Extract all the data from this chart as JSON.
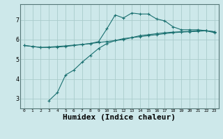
{
  "bg_color": "#cde8ea",
  "grid_color": "#aacccc",
  "line_color": "#1a7070",
  "xlabel": "Humidex (Indice chaleur)",
  "xlabel_fontsize": 8,
  "yticks": [
    3,
    4,
    5,
    6,
    7
  ],
  "xticks": [
    0,
    1,
    2,
    3,
    4,
    5,
    6,
    7,
    8,
    9,
    10,
    11,
    12,
    13,
    14,
    15,
    16,
    17,
    18,
    19,
    20,
    21,
    22,
    23
  ],
  "xlim": [
    -0.5,
    23.5
  ],
  "ylim": [
    2.5,
    7.8
  ],
  "curve1_x": [
    0,
    1,
    2,
    3,
    4,
    5,
    6,
    7,
    8,
    9,
    10,
    11,
    12,
    13,
    14,
    15,
    16,
    17,
    18,
    19,
    20,
    21,
    22,
    23
  ],
  "curve1_y": [
    5.7,
    5.65,
    5.6,
    5.6,
    5.62,
    5.65,
    5.7,
    5.75,
    5.8,
    5.9,
    6.55,
    7.25,
    7.1,
    7.35,
    7.3,
    7.3,
    7.05,
    6.95,
    6.65,
    6.5,
    6.5,
    6.5,
    6.45,
    6.35
  ],
  "curve2_x": [
    0,
    1,
    2,
    3,
    4,
    5,
    6,
    7,
    8,
    9,
    10,
    11,
    12,
    13,
    14,
    15,
    16,
    17,
    18,
    19,
    20,
    21,
    22,
    23
  ],
  "curve2_y": [
    5.7,
    5.65,
    5.6,
    5.62,
    5.65,
    5.68,
    5.72,
    5.75,
    5.8,
    5.85,
    5.9,
    5.95,
    6.0,
    6.1,
    6.2,
    6.25,
    6.3,
    6.35,
    6.38,
    6.4,
    6.42,
    6.45,
    6.45,
    6.4
  ],
  "curve3_x": [
    3,
    4,
    5,
    6,
    7,
    8,
    9,
    10,
    11,
    12,
    13,
    14,
    15,
    16,
    17,
    18,
    19,
    20,
    21,
    22,
    23
  ],
  "curve3_y": [
    2.9,
    3.3,
    4.2,
    4.45,
    4.85,
    5.2,
    5.55,
    5.8,
    5.95,
    6.05,
    6.1,
    6.15,
    6.2,
    6.25,
    6.3,
    6.35,
    6.38,
    6.4,
    6.42,
    6.45,
    6.4
  ]
}
